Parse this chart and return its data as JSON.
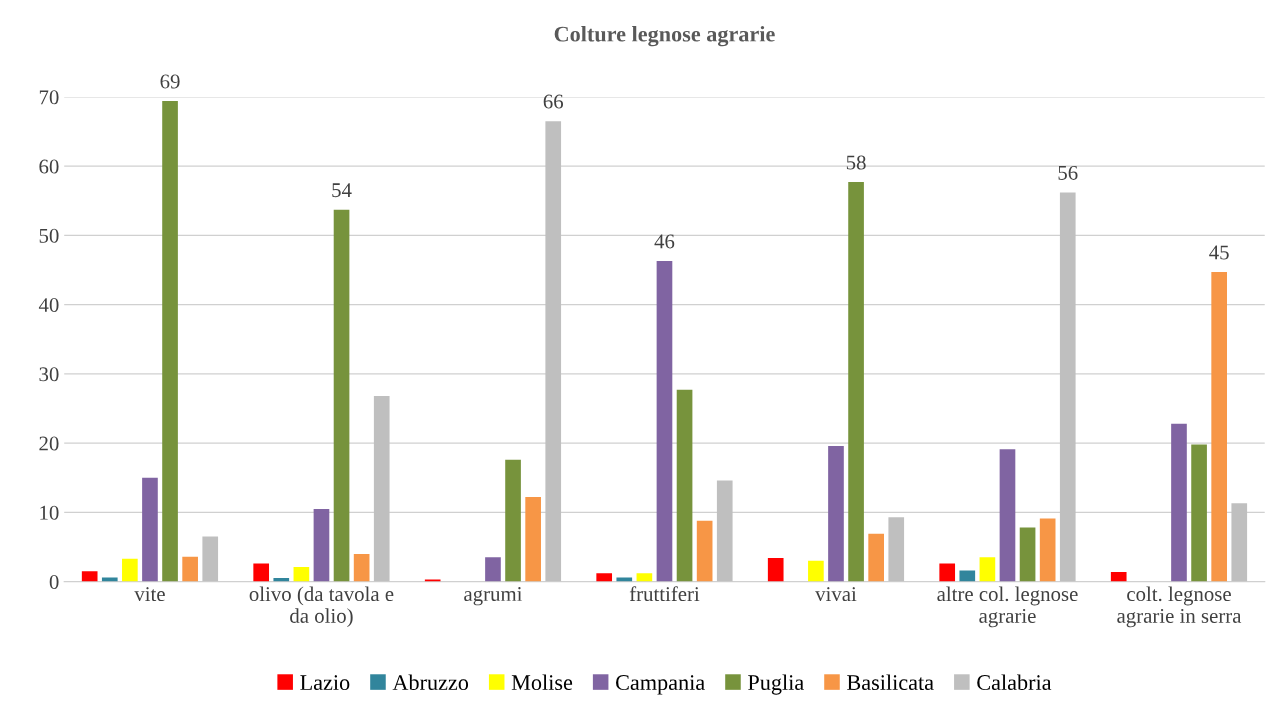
{
  "chart_data": {
    "type": "bar",
    "title": "Colture legnose agrarie",
    "categories": [
      "vite",
      "olivo (da tavola e\nda olio)",
      "agrumi",
      "fruttiferi",
      "vivai",
      "altre col. legnose\nagrarie",
      "colt. legnose\nagrarie in serra"
    ],
    "series": [
      {
        "name": "Lazio",
        "color": "#ff0000",
        "values": [
          1.5,
          2.6,
          0.3,
          1.2,
          3.4,
          2.6,
          1.4
        ]
      },
      {
        "name": "Abruzzo",
        "color": "#31859c",
        "values": [
          0.6,
          0.5,
          0,
          0.6,
          0,
          1.6,
          0
        ]
      },
      {
        "name": "Molise",
        "color": "#ffff00",
        "values": [
          3.3,
          2.1,
          0,
          1.2,
          3.0,
          3.5,
          0
        ]
      },
      {
        "name": "Campania",
        "color": "#8064a2",
        "values": [
          15.0,
          10.5,
          3.5,
          46.3,
          19.6,
          19.1,
          22.8
        ],
        "value_labels": [
          null,
          null,
          null,
          "46",
          null,
          null,
          null
        ]
      },
      {
        "name": "Puglia",
        "color": "#77933c",
        "values": [
          69.4,
          53.7,
          17.6,
          27.7,
          57.7,
          7.8,
          19.8
        ],
        "value_labels": [
          "69",
          "54",
          null,
          null,
          "58",
          null,
          null
        ]
      },
      {
        "name": "Basilicata",
        "color": "#f79646",
        "values": [
          3.6,
          4.0,
          12.2,
          8.8,
          6.9,
          9.1,
          44.7
        ],
        "value_labels": [
          null,
          null,
          null,
          null,
          null,
          null,
          "45"
        ]
      },
      {
        "name": "Calabria",
        "color": "#bfbfbf",
        "values": [
          6.5,
          26.8,
          66.5,
          14.6,
          9.3,
          56.2,
          11.3
        ],
        "value_labels": [
          null,
          null,
          "66",
          null,
          null,
          "56",
          null
        ]
      }
    ],
    "ylim": [
      0,
      70
    ],
    "yticks": [
      0,
      10,
      20,
      30,
      40,
      50,
      60,
      70
    ],
    "grid": "y",
    "legend": "bottom"
  }
}
